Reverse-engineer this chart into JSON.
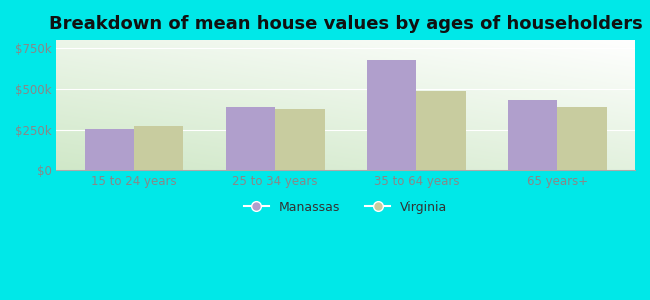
{
  "title": "Breakdown of mean house values by ages of householders",
  "categories": [
    "15 to 24 years",
    "25 to 34 years",
    "35 to 64 years",
    "65 years+"
  ],
  "manassas_values": [
    255000,
    390000,
    680000,
    430000
  ],
  "virginia_values": [
    270000,
    375000,
    490000,
    390000
  ],
  "manassas_color": "#b09fcc",
  "virginia_color": "#c8cc9f",
  "background_color": "#00e8e8",
  "ylim": [
    0,
    800000
  ],
  "yticks": [
    0,
    250000,
    500000,
    750000
  ],
  "ytick_labels": [
    "$0",
    "$250k",
    "$500k",
    "$750k"
  ],
  "legend_manassas": "Manassas",
  "legend_virginia": "Virginia",
  "bar_width": 0.35,
  "title_fontsize": 13,
  "tick_fontsize": 8.5,
  "legend_fontsize": 9,
  "tick_color": "#888888",
  "text_color": "#333333"
}
